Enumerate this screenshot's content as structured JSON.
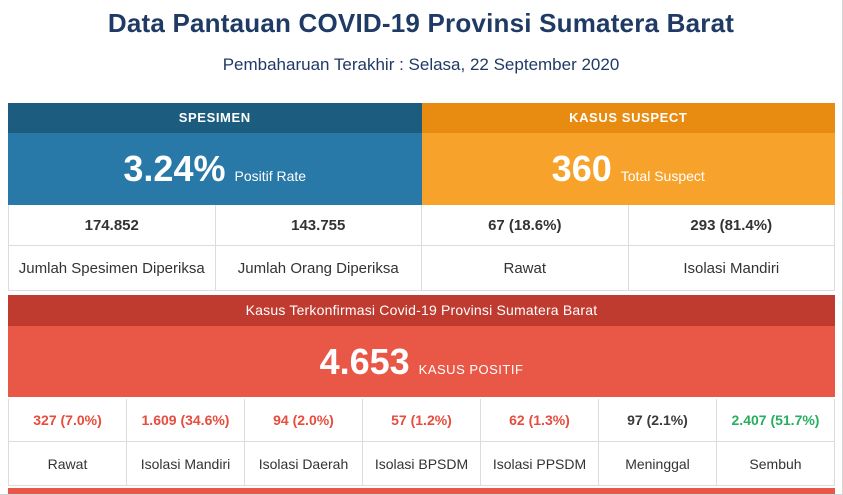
{
  "page": {
    "title": "Data Pantauan COVID-19 Provinsi Sumatera Barat",
    "subtitle": "Pembaharuan Terakhir : Selasa, 22 September 2020"
  },
  "colors": {
    "title_text": "#203a66",
    "spesimen_header_bg": "#1c5c7f",
    "spesimen_panel_bg": "#2878a8",
    "suspect_header_bg": "#e78b11",
    "suspect_panel_bg": "#f7a32b",
    "confirmed_header_bg": "#bf3a2f",
    "confirmed_panel_bg": "#e95847",
    "value_red": "#e74c3c",
    "value_dark": "#3b3b3b",
    "value_green": "#27ae60",
    "cell_border": "#dcdcdc",
    "cell_text": "#333333"
  },
  "spesimen": {
    "header": "SPESIMEN",
    "big_value": "3.24%",
    "big_label": "Positif Rate",
    "cells": [
      {
        "value": "174.852",
        "label": "Jumlah Spesimen Diperiksa"
      },
      {
        "value": "143.755",
        "label": "Jumlah Orang Diperiksa"
      }
    ]
  },
  "suspect": {
    "header": "KASUS SUSPECT",
    "big_value": "360",
    "big_label": "Total Suspect",
    "cells": [
      {
        "value": "67 (18.6%)",
        "label": "Rawat"
      },
      {
        "value": "293 (81.4%)",
        "label": "Isolasi Mandiri"
      }
    ]
  },
  "confirmed": {
    "header": "Kasus Terkonfirmasi Covid-19 Provinsi Sumatera Barat",
    "big_value": "4.653",
    "big_label": "KASUS POSITIF",
    "cells": [
      {
        "value": "327 (7.0%)",
        "label": "Rawat",
        "tone": "red"
      },
      {
        "value": "1.609 (34.6%)",
        "label": "Isolasi Mandiri",
        "tone": "red"
      },
      {
        "value": "94 (2.0%)",
        "label": "Isolasi Daerah",
        "tone": "red"
      },
      {
        "value": "57 (1.2%)",
        "label": "Isolasi BPSDM",
        "tone": "red"
      },
      {
        "value": "62 (1.3%)",
        "label": "Isolasi PPSDM",
        "tone": "red"
      },
      {
        "value": "97 (2.1%)",
        "label": "Meninggal",
        "tone": "dark"
      },
      {
        "value": "2.407 (51.7%)",
        "label": "Sembuh",
        "tone": "green"
      }
    ]
  },
  "chart_data": {
    "type": "table",
    "title": "Data Pantauan COVID-19 Provinsi Sumatera Barat",
    "subtitle": "Pembaharuan Terakhir : Selasa, 22 September 2020",
    "sections": [
      {
        "name": "Spesimen",
        "positif_rate_pct": 3.24,
        "jumlah_spesimen_diperiksa": 174852,
        "jumlah_orang_diperiksa": 143755
      },
      {
        "name": "Kasus Suspect",
        "total_suspect": 360,
        "rawat": 67,
        "rawat_pct": 18.6,
        "isolasi_mandiri": 293,
        "isolasi_mandiri_pct": 81.4
      },
      {
        "name": "Kasus Terkonfirmasi Covid-19 Provinsi Sumatera Barat",
        "kasus_positif": 4653,
        "breakdown": [
          {
            "label": "Rawat",
            "value": 327,
            "pct": 7.0
          },
          {
            "label": "Isolasi Mandiri",
            "value": 1609,
            "pct": 34.6
          },
          {
            "label": "Isolasi Daerah",
            "value": 94,
            "pct": 2.0
          },
          {
            "label": "Isolasi BPSDM",
            "value": 57,
            "pct": 1.2
          },
          {
            "label": "Isolasi PPSDM",
            "value": 62,
            "pct": 1.3
          },
          {
            "label": "Meninggal",
            "value": 97,
            "pct": 2.1
          },
          {
            "label": "Sembuh",
            "value": 2407,
            "pct": 51.7
          }
        ]
      }
    ]
  }
}
